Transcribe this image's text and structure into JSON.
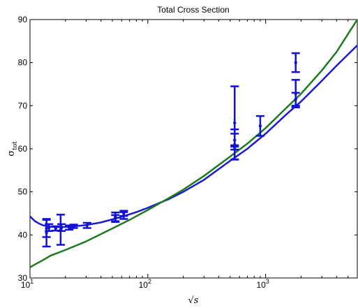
{
  "chart_data": {
    "type": "scatter",
    "title": "Total Cross Section",
    "xlabel": "√s",
    "ylabel": {
      "main": "σ",
      "sub": "tot"
    },
    "x_scale": "log",
    "xlim": [
      10,
      6000
    ],
    "ylim": [
      30,
      90
    ],
    "x_ticks": [
      {
        "value": 10,
        "base": "10",
        "exp": "1"
      },
      {
        "value": 100,
        "base": "10",
        "exp": "2"
      },
      {
        "value": 1000,
        "base": "10",
        "exp": "3"
      }
    ],
    "y_ticks": [
      30,
      40,
      50,
      60,
      70,
      80,
      90
    ],
    "grid": false,
    "legend": "none",
    "colors": {
      "data": "#1010d8",
      "fit_blue": "#1a1ad0",
      "fit_green": "#1e7a1e"
    },
    "series": [
      {
        "kind": "errorbar",
        "color": "#1010d8",
        "points": [
          {
            "x": 13.8,
            "y": 41.5,
            "err": 2.0
          },
          {
            "x": 13.8,
            "y": 40.5,
            "err": 3.2
          },
          {
            "x": 14.5,
            "y": 41.7,
            "err": 0.8
          },
          {
            "x": 16.5,
            "y": 41.5,
            "err": 0.5
          },
          {
            "x": 18.2,
            "y": 41.2,
            "err": 3.5
          },
          {
            "x": 18.5,
            "y": 41.7,
            "err": 0.8
          },
          {
            "x": 21.5,
            "y": 41.7,
            "err": 0.5
          },
          {
            "x": 23.5,
            "y": 42.0,
            "err": 0.4
          },
          {
            "x": 30.5,
            "y": 42.2,
            "err": 0.6
          },
          {
            "x": 53.0,
            "y": 43.8,
            "err": 0.8
          },
          {
            "x": 53.0,
            "y": 44.2,
            "err": 1.0
          },
          {
            "x": 62.5,
            "y": 44.5,
            "err": 0.8
          },
          {
            "x": 62.5,
            "y": 45.0,
            "err": 0.6
          },
          {
            "x": 546,
            "y": 66.0,
            "err": 8.5
          },
          {
            "x": 546,
            "y": 62.0,
            "err": 1.5
          },
          {
            "x": 546,
            "y": 61.0,
            "err": 3.5
          },
          {
            "x": 546,
            "y": 60.3,
            "err": 0.5
          },
          {
            "x": 900,
            "y": 65.3,
            "err": 2.3
          },
          {
            "x": 1800,
            "y": 80.0,
            "err": 2.2
          },
          {
            "x": 1800,
            "y": 72.8,
            "err": 3.2
          },
          {
            "x": 1800,
            "y": 71.5,
            "err": 1.5
          }
        ]
      },
      {
        "kind": "line",
        "color": "#1a1ad0",
        "x": [
          10,
          11,
          12,
          13,
          15,
          18,
          22,
          30,
          40,
          60,
          80,
          100,
          150,
          200,
          300,
          500,
          700,
          1000,
          1500,
          2000,
          3000,
          4000,
          6000
        ],
        "y": [
          44.3,
          43.2,
          42.6,
          42.2,
          41.9,
          41.8,
          41.9,
          42.3,
          42.9,
          44.2,
          45.3,
          46.3,
          48.3,
          50.0,
          52.8,
          57.2,
          60.0,
          63.5,
          68.0,
          71.0,
          75.8,
          79.3,
          84.0
        ]
      },
      {
        "kind": "line",
        "color": "#1e7a1e",
        "x": [
          10,
          13,
          15,
          20,
          30,
          50,
          70,
          100,
          150,
          200,
          300,
          500,
          700,
          1000,
          1500,
          2000,
          3000,
          4000,
          6000
        ],
        "y": [
          32.5,
          34.2,
          35.2,
          36.5,
          38.5,
          41.5,
          43.5,
          45.8,
          48.5,
          50.5,
          53.7,
          58.2,
          61.2,
          64.8,
          69.5,
          72.8,
          78.2,
          82.5,
          90.0
        ]
      }
    ]
  }
}
